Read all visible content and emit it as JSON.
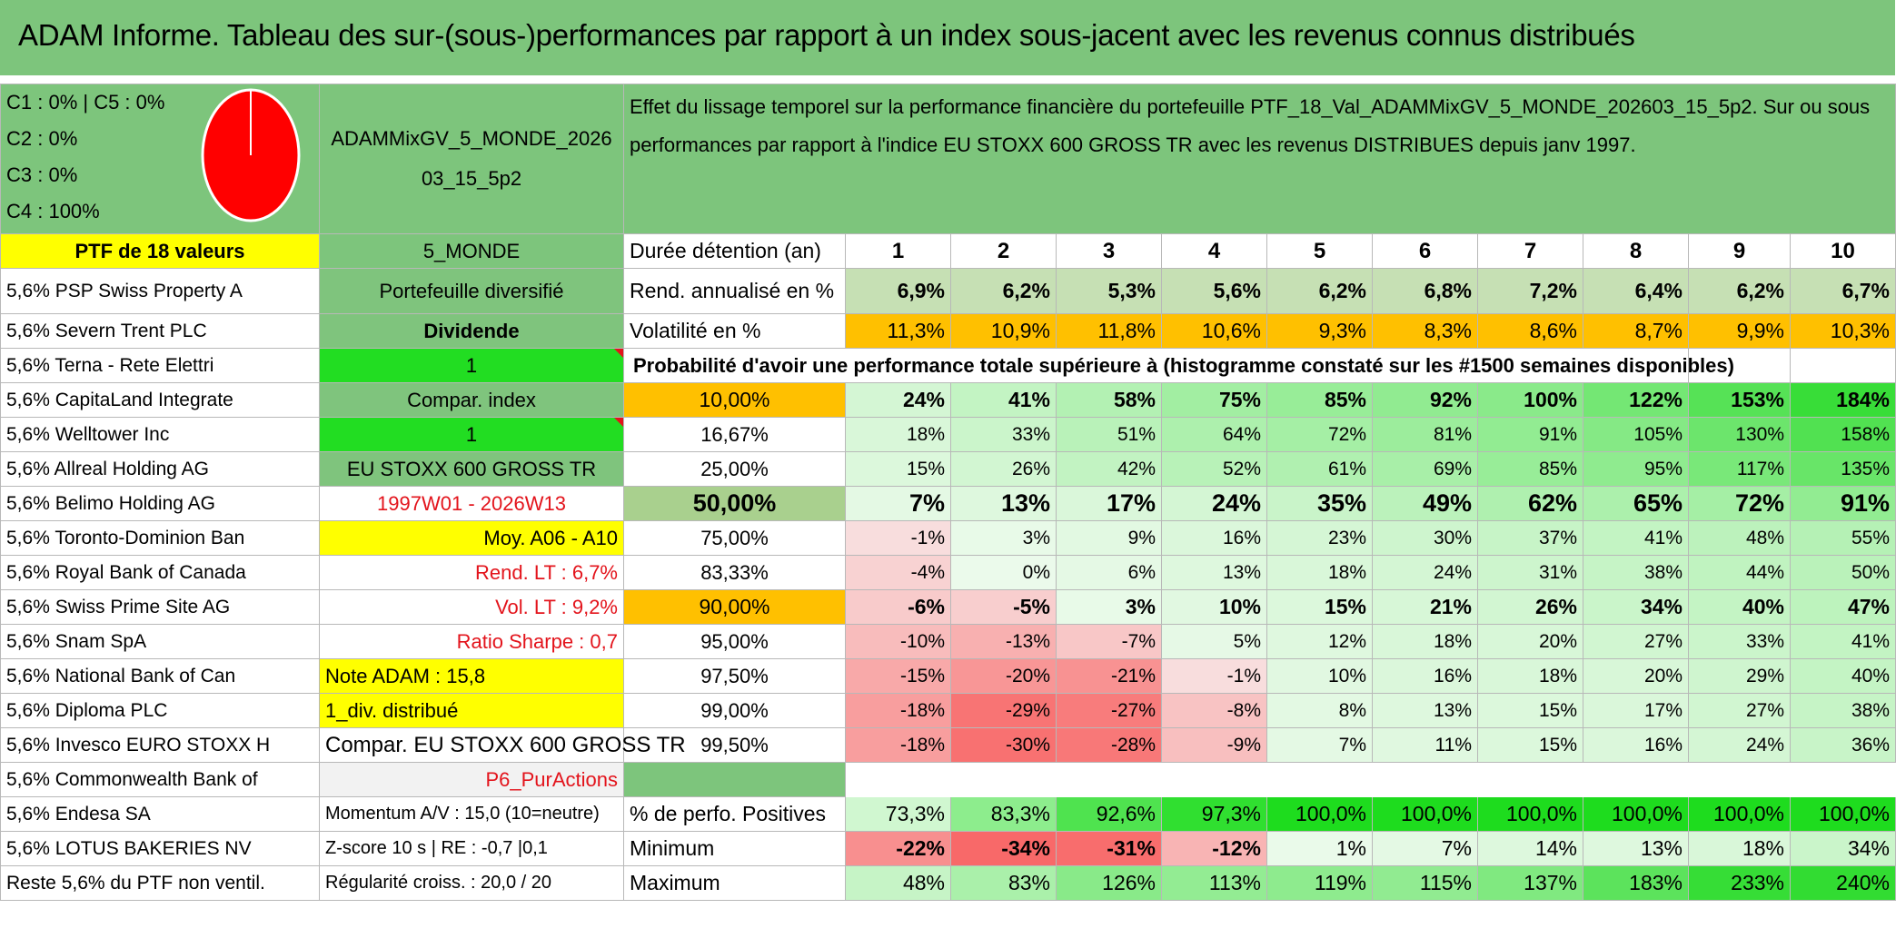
{
  "title": "ADAM Informe. Tableau des sur-(sous-)performances par rapport à un index sous-jacent avec les revenus connus distribués",
  "legend": {
    "c1c5": "C1 : 0% | C5 : 0%",
    "c2": "C2 : 0%",
    "c3": "C3 : 0%",
    "c4": "C4 : 100%"
  },
  "portfolio_name": "ADAMMixGV_5_MONDE_202603_15_5p2",
  "description": "Effet du lissage temporel sur la performance financière du portefeuille PTF_18_Val_ADAMMixGV_5_MONDE_202603_15_5p2. Sur ou sous performances par rapport à l'indice EU STOXX 600 GROSS TR avec les revenus DISTRIBUES depuis janv 1997.",
  "ptf_header": "PTF de 18 valeurs",
  "zone": "5_MONDE",
  "duration_label": "Durée détention (an)",
  "years": [
    "1",
    "2",
    "3",
    "4",
    "5",
    "6",
    "7",
    "8",
    "9",
    "10"
  ],
  "holdings": [
    "5,6% PSP Swiss Property A",
    "5,6% Severn Trent PLC",
    "5,6% Terna - Rete Elettri",
    "5,6% CapitaLand Integrate",
    "5,6% Welltower Inc",
    "5,6% Allreal Holding AG",
    "5,6% Belimo Holding AG",
    "5,6% Toronto-Dominion Ban",
    "5,6% Royal Bank of Canada",
    "5,6% Swiss Prime Site AG",
    "5,6% Snam SpA",
    "5,6% National Bank of Can",
    "5,6% Diploma PLC",
    "5,6% Invesco EURO STOXX H",
    "5,6% Commonwealth Bank of",
    "5,6% Endesa SA",
    "5,6% LOTUS BAKERIES NV",
    "Reste 5,6% du PTF non ventil."
  ],
  "info_col": [
    "Portefeuille diversifié",
    "Dividende",
    "1",
    "Compar. index",
    "1",
    "EU STOXX 600 GROSS TR",
    "1997W01 - 2026W13",
    "Moy. A06 - A10",
    "Rend. LT : 6,7%",
    "Vol. LT : 9,2%",
    "Ratio Sharpe : 0,7",
    "Note ADAM : 15,8",
    "1_div. distribué",
    "Compar. EU STOXX 600 GROSS TR",
    "P6_PurActions",
    "Momentum A/V : 15,0 (10=neutre)",
    "Z-score 10 s | RE : -0,7 |0,1",
    "Régularité croiss. : 20,0 / 20"
  ],
  "rend": {
    "label": "Rend. annualisé en %",
    "values": [
      "6,9%",
      "6,2%",
      "5,3%",
      "5,6%",
      "6,2%",
      "6,8%",
      "7,2%",
      "6,4%",
      "6,2%",
      "6,7%"
    ]
  },
  "vol": {
    "label": "Volatilité en %",
    "values": [
      "11,3%",
      "10,9%",
      "11,8%",
      "10,6%",
      "9,3%",
      "8,3%",
      "8,6%",
      "8,7%",
      "9,9%",
      "10,3%"
    ]
  },
  "prob_title": "Probabilité d'avoir une performance totale supérieure à (histogramme constaté sur les #1500 semaines disponibles)",
  "prob_rows": [
    {
      "p": "10,00%",
      "v": [
        "24%",
        "41%",
        "58%",
        "75%",
        "85%",
        "92%",
        "100%",
        "122%",
        "153%",
        "184%"
      ]
    },
    {
      "p": "16,67%",
      "v": [
        "18%",
        "33%",
        "51%",
        "64%",
        "72%",
        "81%",
        "91%",
        "105%",
        "130%",
        "158%"
      ]
    },
    {
      "p": "25,00%",
      "v": [
        "15%",
        "26%",
        "42%",
        "52%",
        "61%",
        "69%",
        "85%",
        "95%",
        "117%",
        "135%"
      ]
    },
    {
      "p": "50,00%",
      "v": [
        "7%",
        "13%",
        "17%",
        "24%",
        "35%",
        "49%",
        "62%",
        "65%",
        "72%",
        "91%"
      ]
    },
    {
      "p": "75,00%",
      "v": [
        "-1%",
        "3%",
        "9%",
        "16%",
        "23%",
        "30%",
        "37%",
        "41%",
        "48%",
        "55%"
      ]
    },
    {
      "p": "83,33%",
      "v": [
        "-4%",
        "0%",
        "6%",
        "13%",
        "18%",
        "24%",
        "31%",
        "38%",
        "44%",
        "50%"
      ]
    },
    {
      "p": "90,00%",
      "v": [
        "-6%",
        "-5%",
        "3%",
        "10%",
        "15%",
        "21%",
        "26%",
        "34%",
        "40%",
        "47%"
      ]
    },
    {
      "p": "95,00%",
      "v": [
        "-10%",
        "-13%",
        "-7%",
        "5%",
        "12%",
        "18%",
        "20%",
        "27%",
        "33%",
        "41%"
      ]
    },
    {
      "p": "97,50%",
      "v": [
        "-15%",
        "-20%",
        "-21%",
        "-1%",
        "10%",
        "16%",
        "18%",
        "20%",
        "29%",
        "40%"
      ]
    },
    {
      "p": "99,00%",
      "v": [
        "-18%",
        "-29%",
        "-27%",
        "-8%",
        "8%",
        "13%",
        "15%",
        "17%",
        "27%",
        "38%"
      ]
    },
    {
      "p": "99,50%",
      "v": [
        "-18%",
        "-30%",
        "-28%",
        "-9%",
        "7%",
        "11%",
        "15%",
        "16%",
        "24%",
        "36%"
      ]
    }
  ],
  "pos": {
    "label": "% de perfo. Positives",
    "values": [
      "73,3%",
      "83,3%",
      "92,6%",
      "97,3%",
      "100,0%",
      "100,0%",
      "100,0%",
      "100,0%",
      "100,0%",
      "100,0%"
    ]
  },
  "min": {
    "label": "Minimum",
    "values": [
      "-22%",
      "-34%",
      "-31%",
      "-12%",
      "1%",
      "7%",
      "14%",
      "13%",
      "18%",
      "34%"
    ]
  },
  "max": {
    "label": "Maximum",
    "values": [
      "48%",
      "83%",
      "126%",
      "113%",
      "119%",
      "115%",
      "137%",
      "183%",
      "233%",
      "240%"
    ]
  },
  "colors": {
    "header_green": "#7dc57c",
    "yellow": "#ffff00",
    "orange": "#ffc000",
    "red_text": "#e3141c",
    "pie_red": "#ff0000"
  }
}
